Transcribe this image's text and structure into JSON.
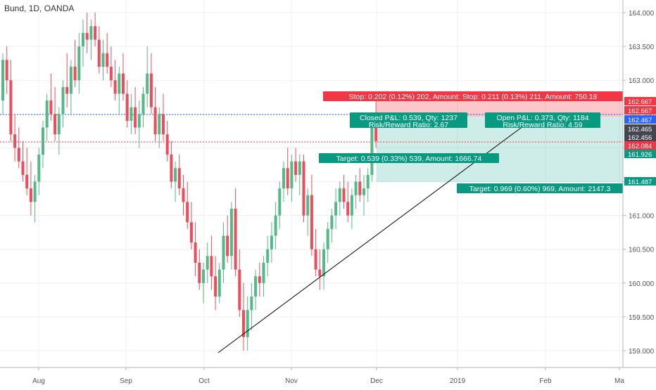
{
  "header": {
    "title": "Bund, 1D, OANDA"
  },
  "chart_data": {
    "type": "candlestick",
    "title": "Bund, 1D, OANDA",
    "y_ticks": [
      "159.000",
      "159.500",
      "160.000",
      "160.500",
      "161.000",
      "161.500",
      "162.000",
      "162.500",
      "163.000",
      "163.500",
      "164.000"
    ],
    "x_ticks": [
      "Aug",
      "Sep",
      "Oct",
      "Nov",
      "Dec",
      "2019",
      "Feb",
      "Ma"
    ],
    "ylim": [
      158.85,
      164.15
    ],
    "grid": true,
    "colors": {
      "up": "#53b987",
      "down": "#eb4d5c",
      "trend": "#000000",
      "stop": "#f23645",
      "target": "#089981"
    },
    "price_labels": [
      {
        "value": "162.667",
        "color": "#f23645"
      },
      {
        "value": "162.667",
        "color": "#f23645"
      },
      {
        "value": "162.467",
        "color": "#2962ff"
      },
      {
        "value": "162.465",
        "color": "#434651"
      },
      {
        "value": "162.456",
        "color": "#434651"
      },
      {
        "value": "162.084",
        "color": "#f23645"
      },
      {
        "value": "161.926",
        "color": "#089981"
      },
      {
        "value": "161.487",
        "color": "#089981"
      }
    ],
    "positions": {
      "stop_label": "Stop: 0.202 (0.12%) 202, Amount: Stop: 0.211 (0.13%) 211, Amount: 750.18",
      "closed_pl": "Closed P&L: 0.539, Qty: 1237",
      "closed_rr": "Risk/Reward Ratio: 2.67",
      "open_pl": "Open P&L: 0.373, Qty: 1184",
      "open_rr": "Risk/Reward Ratio: 4.59",
      "target1": "Target: 0.539 (0.33%) 539, Amount: 1666.74",
      "target2": "Target: 0.969 (0.60%) 969, Amount: 2147.3"
    },
    "trendline": {
      "from": {
        "date": "Oct 5",
        "price": 158.97
      },
      "to": {
        "date": "Dec 18",
        "price": 162.45
      }
    },
    "candles": [
      [
        162.7,
        163.4,
        162.5,
        163.3
      ],
      [
        163.3,
        163.5,
        162.8,
        163.0
      ],
      [
        163.0,
        163.3,
        162.1,
        162.2
      ],
      [
        162.2,
        162.5,
        161.8,
        162.0
      ],
      [
        162.0,
        162.3,
        161.7,
        161.8
      ],
      [
        161.8,
        162.1,
        161.5,
        161.6
      ],
      [
        161.6,
        162.0,
        161.3,
        161.4
      ],
      [
        161.4,
        161.8,
        161.0,
        161.2
      ],
      [
        161.2,
        161.6,
        160.9,
        161.5
      ],
      [
        161.5,
        162.0,
        161.3,
        161.9
      ],
      [
        161.9,
        162.4,
        161.7,
        162.3
      ],
      [
        162.3,
        162.8,
        162.1,
        162.7
      ],
      [
        162.7,
        163.1,
        162.4,
        162.5
      ],
      [
        162.5,
        162.9,
        162.1,
        162.2
      ],
      [
        162.2,
        162.6,
        161.9,
        162.5
      ],
      [
        162.5,
        163.0,
        162.3,
        162.9
      ],
      [
        162.9,
        163.4,
        162.6,
        162.8
      ],
      [
        162.8,
        163.3,
        162.5,
        163.2
      ],
      [
        163.2,
        163.6,
        162.9,
        163.0
      ],
      [
        163.0,
        163.7,
        162.8,
        163.5
      ],
      [
        163.5,
        163.9,
        163.2,
        163.7
      ],
      [
        163.7,
        164.0,
        163.4,
        163.6
      ],
      [
        163.6,
        163.9,
        163.3,
        163.8
      ],
      [
        163.8,
        164.0,
        163.5,
        163.6
      ],
      [
        163.6,
        163.8,
        163.1,
        163.2
      ],
      [
        163.2,
        163.6,
        163.0,
        163.4
      ],
      [
        163.4,
        163.7,
        163.1,
        163.2
      ],
      [
        163.2,
        163.5,
        162.9,
        163.0
      ],
      [
        163.0,
        163.3,
        162.7,
        162.8
      ],
      [
        162.8,
        163.2,
        162.5,
        163.1
      ],
      [
        163.1,
        163.4,
        162.7,
        162.8
      ],
      [
        162.8,
        163.0,
        162.3,
        162.4
      ],
      [
        162.4,
        162.8,
        162.2,
        162.6
      ],
      [
        162.6,
        162.9,
        162.2,
        162.3
      ],
      [
        162.3,
        162.7,
        162.0,
        162.5
      ],
      [
        162.5,
        162.9,
        162.3,
        162.8
      ],
      [
        162.8,
        163.5,
        162.6,
        163.1
      ],
      [
        163.1,
        163.4,
        162.5,
        162.6
      ],
      [
        162.6,
        162.9,
        162.1,
        162.2
      ],
      [
        162.2,
        162.6,
        162.0,
        162.5
      ],
      [
        162.5,
        162.8,
        162.1,
        162.2
      ],
      [
        162.2,
        162.4,
        161.8,
        161.9
      ],
      [
        161.9,
        162.1,
        161.4,
        161.5
      ],
      [
        161.5,
        161.8,
        161.2,
        161.7
      ],
      [
        161.7,
        161.9,
        161.3,
        161.4
      ],
      [
        161.4,
        161.6,
        161.0,
        161.2
      ],
      [
        161.2,
        161.5,
        160.8,
        160.9
      ],
      [
        160.9,
        161.2,
        160.5,
        160.6
      ],
      [
        160.6,
        160.9,
        160.1,
        160.3
      ],
      [
        160.3,
        160.5,
        159.9,
        160.0
      ],
      [
        160.0,
        160.3,
        159.7,
        160.2
      ],
      [
        160.2,
        160.6,
        160.0,
        160.4
      ],
      [
        160.4,
        160.7,
        159.9,
        160.1
      ],
      [
        160.1,
        160.4,
        159.6,
        159.8
      ],
      [
        159.8,
        160.3,
        159.7,
        160.2
      ],
      [
        160.2,
        160.9,
        160.0,
        160.7
      ],
      [
        160.7,
        161.0,
        160.3,
        160.4
      ],
      [
        160.4,
        161.2,
        160.2,
        161.1
      ],
      [
        161.1,
        161.4,
        160.1,
        160.2
      ],
      [
        160.2,
        160.5,
        159.5,
        159.6
      ],
      [
        159.6,
        160.0,
        159.0,
        159.2
      ],
      [
        159.2,
        159.8,
        159.0,
        159.6
      ],
      [
        159.6,
        160.0,
        159.3,
        159.8
      ],
      [
        159.8,
        160.2,
        159.6,
        160.1
      ],
      [
        160.1,
        160.3,
        159.8,
        160.0
      ],
      [
        160.0,
        160.4,
        159.8,
        160.3
      ],
      [
        160.3,
        160.7,
        160.1,
        160.5
      ],
      [
        160.5,
        160.9,
        160.3,
        160.7
      ],
      [
        160.7,
        161.2,
        160.5,
        161.0
      ],
      [
        161.0,
        161.5,
        160.8,
        161.4
      ],
      [
        161.4,
        161.8,
        161.2,
        161.7
      ],
      [
        161.7,
        162.0,
        161.3,
        161.4
      ],
      [
        161.4,
        161.9,
        161.2,
        161.8
      ],
      [
        161.8,
        162.0,
        161.5,
        161.6
      ],
      [
        161.6,
        161.9,
        161.3,
        161.8
      ],
      [
        161.8,
        161.9,
        160.9,
        161.0
      ],
      [
        161.0,
        161.4,
        160.7,
        161.3
      ],
      [
        161.3,
        161.6,
        160.4,
        160.5
      ],
      [
        160.5,
        160.8,
        160.1,
        160.2
      ],
      [
        160.2,
        160.5,
        159.9,
        160.1
      ],
      [
        160.1,
        160.6,
        159.9,
        160.5
      ],
      [
        160.5,
        160.9,
        160.3,
        160.8
      ],
      [
        160.8,
        161.1,
        160.6,
        161.0
      ],
      [
        161.0,
        161.4,
        160.8,
        161.2
      ],
      [
        161.2,
        161.5,
        161.0,
        161.4
      ],
      [
        161.4,
        161.6,
        161.1,
        161.2
      ],
      [
        161.2,
        161.5,
        160.9,
        161.0
      ],
      [
        161.0,
        161.4,
        160.8,
        161.3
      ],
      [
        161.3,
        161.6,
        161.1,
        161.5
      ],
      [
        161.5,
        161.7,
        161.2,
        161.3
      ],
      [
        161.3,
        161.6,
        161.0,
        161.4
      ],
      [
        161.4,
        161.7,
        161.2,
        161.6
      ],
      [
        161.6,
        162.4,
        161.5,
        162.3
      ],
      [
        162.3,
        162.7,
        162.0,
        162.1
      ]
    ]
  }
}
